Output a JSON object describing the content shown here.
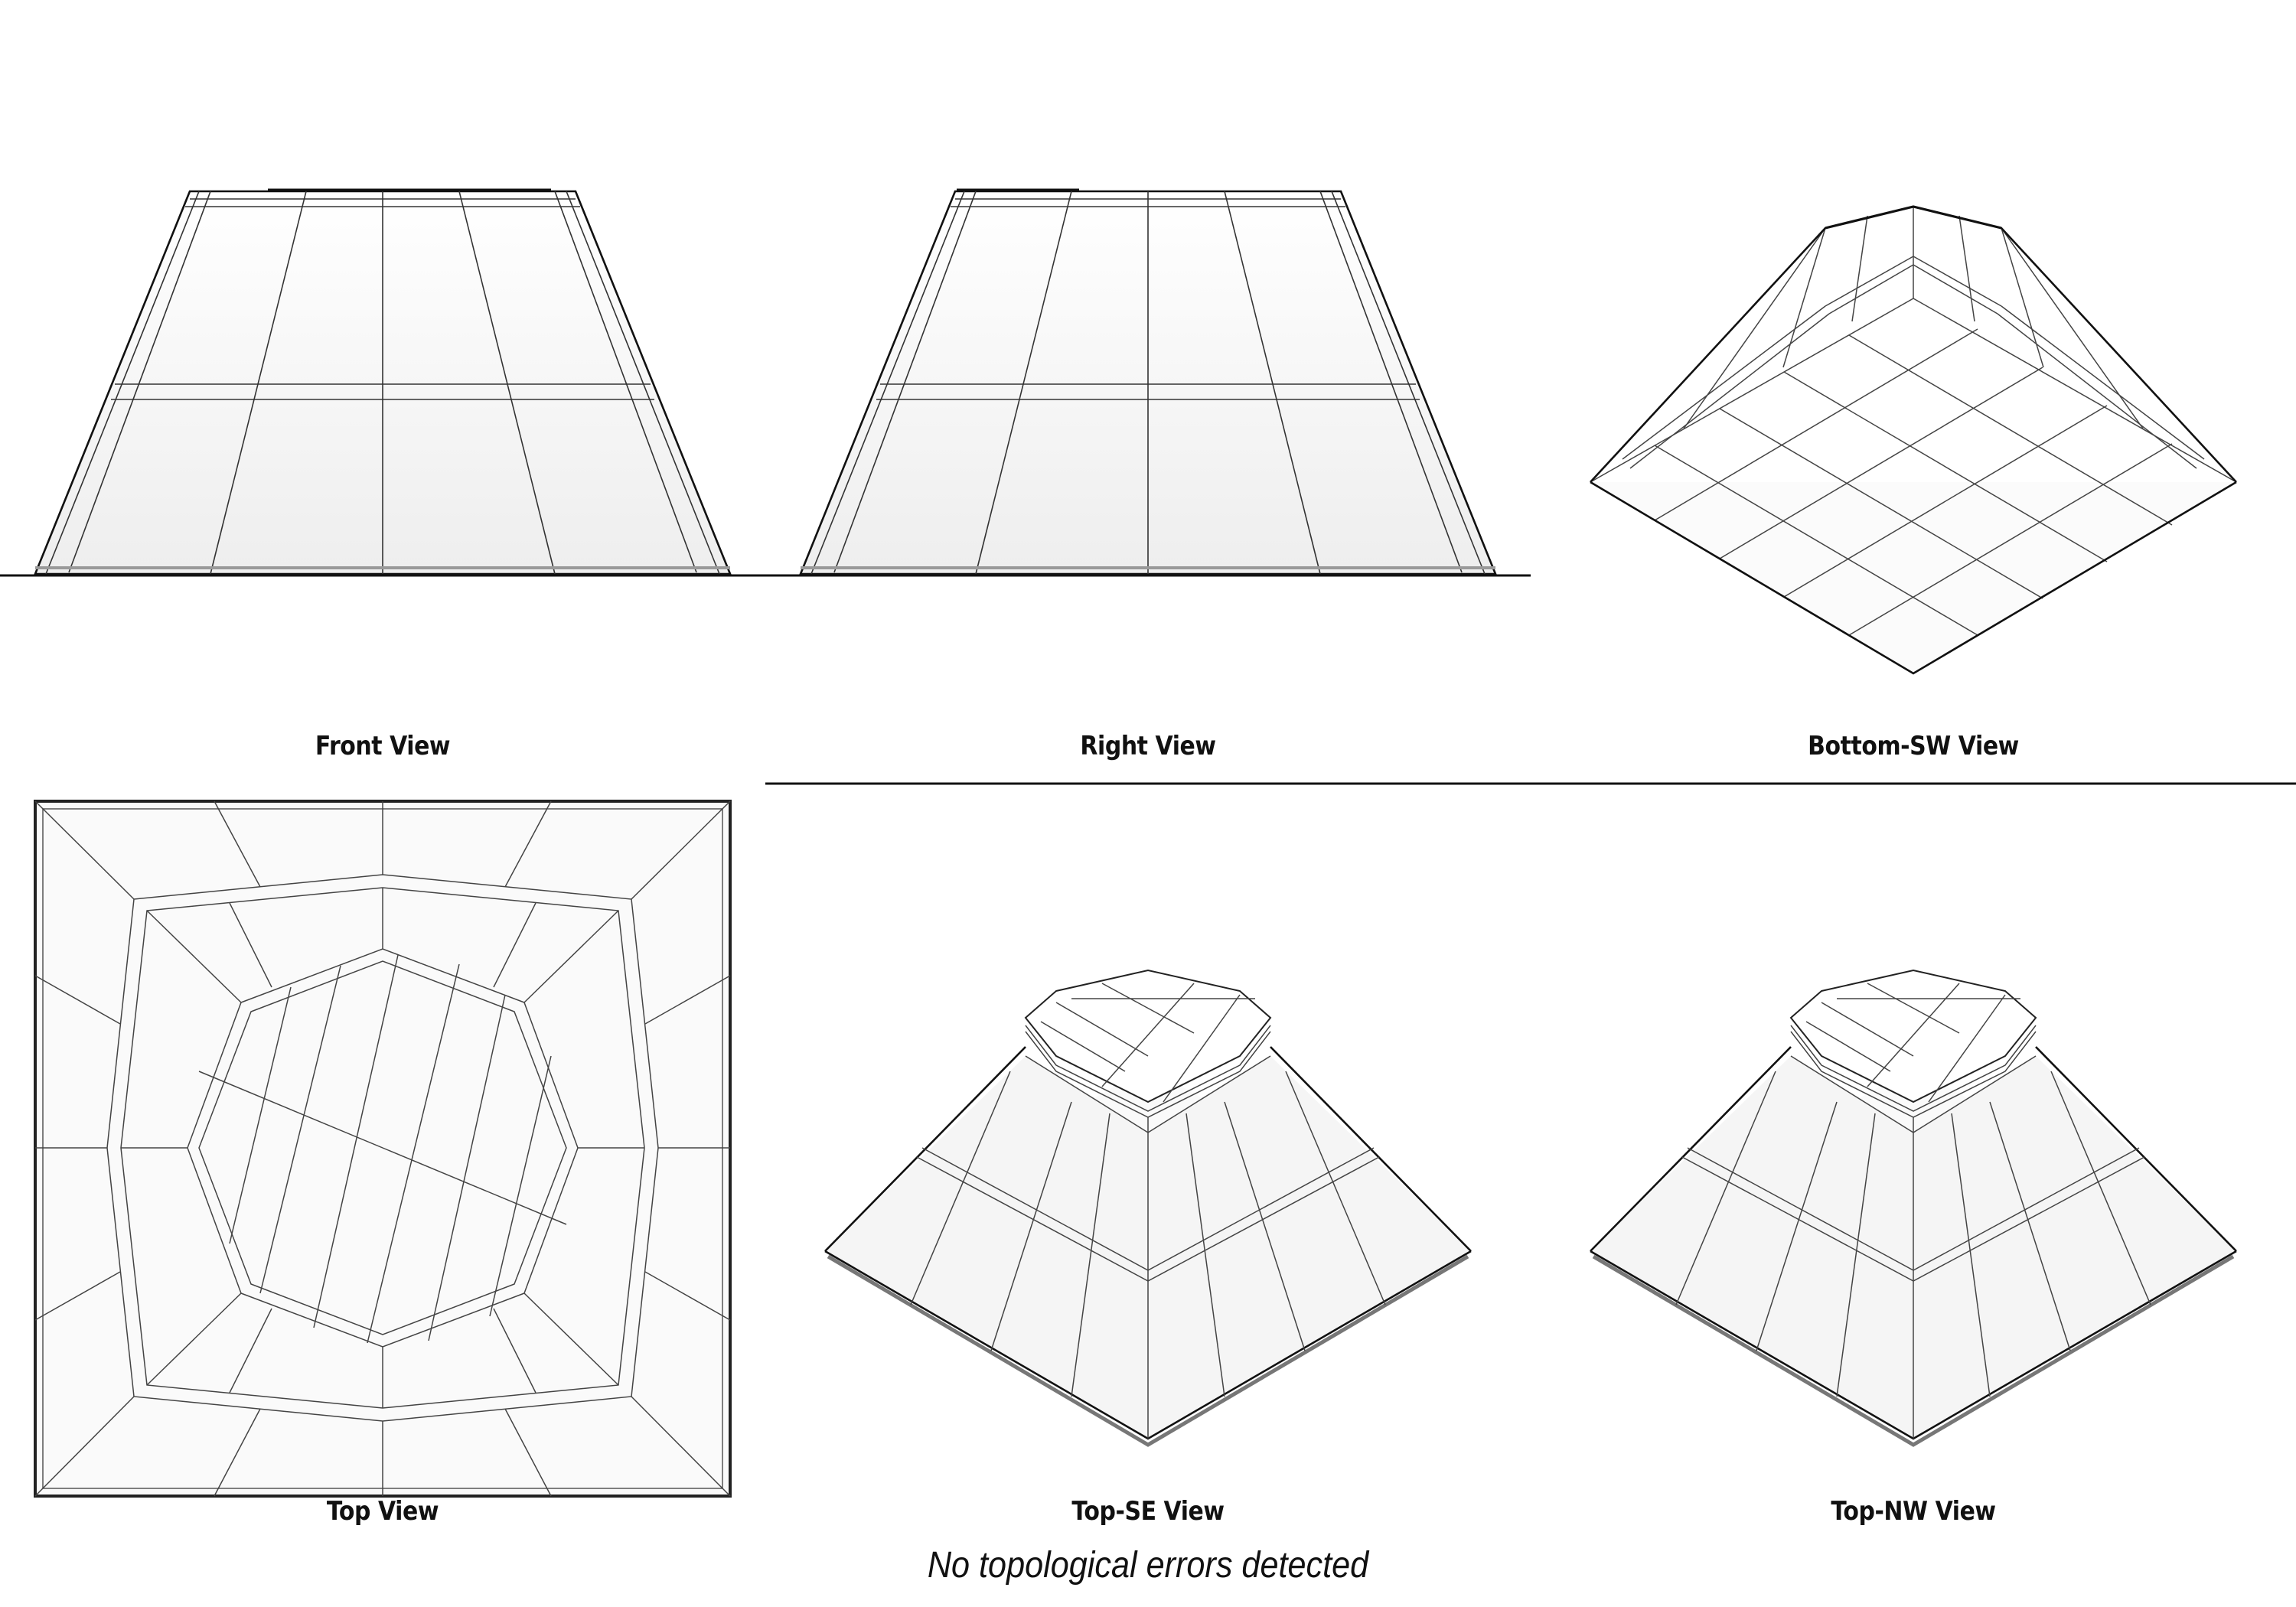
{
  "views": [
    {
      "key": "front",
      "label": "Front View"
    },
    {
      "key": "right",
      "label": "Right View"
    },
    {
      "key": "bottom_sw",
      "label": "Bottom-SW View"
    },
    {
      "key": "top",
      "label": "Top View"
    },
    {
      "key": "top_se",
      "label": "Top-SE View"
    },
    {
      "key": "top_nw",
      "label": "Top-NW View"
    }
  ],
  "status": {
    "message": "No topological errors detected"
  },
  "colors": {
    "line": "#222222",
    "edge": "#111111",
    "fill": "#f6f6f6",
    "shade": "#e4e4e4"
  }
}
